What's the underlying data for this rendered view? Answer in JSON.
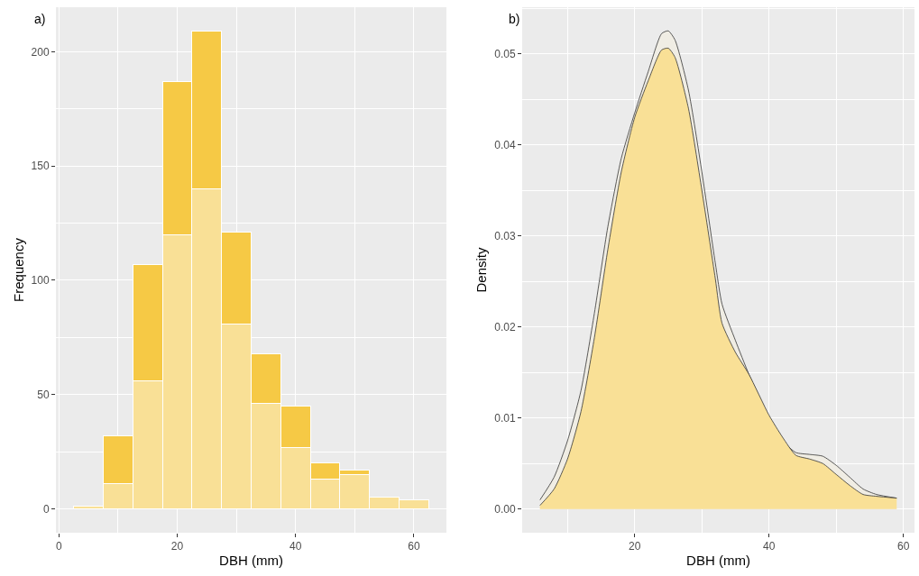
{
  "chart_data": [
    {
      "type": "bar",
      "xlabel": "DBH (mm)",
      "ylabel": "Frequency",
      "annotations": [
        "a)"
      ],
      "x": [
        5,
        10,
        15,
        20,
        25,
        30,
        35,
        40,
        45,
        50,
        55,
        60
      ],
      "series": [
        {
          "color": "#f9e096",
          "values": [
            1,
            11,
            56,
            120,
            140,
            81,
            46,
            27,
            13,
            15,
            5,
            4
          ]
        },
        {
          "color": "#f6c945",
          "values": [
            null,
            21,
            51,
            67,
            69,
            40,
            22,
            18,
            7,
            2,
            null,
            null
          ]
        }
      ],
      "stacked": true,
      "xlim": [
        -0.5,
        65.5
      ],
      "ylim": [
        -10.45,
        219.45
      ],
      "xticks": [
        0,
        20,
        40,
        60
      ],
      "yticks": [
        0,
        50,
        100,
        150,
        200
      ],
      "grid": true
    },
    {
      "type": "area",
      "xlabel": "DBH (mm)",
      "ylabel": "Density",
      "annotations": [
        "b)"
      ],
      "x": [
        5.9,
        8,
        10,
        12,
        14,
        16,
        18,
        20,
        22,
        24,
        25,
        26,
        28,
        30,
        32,
        33,
        35,
        37,
        40,
        42,
        44,
        46,
        48,
        50,
        52,
        54,
        56,
        59
      ],
      "series": [
        {
          "color": "#f0ede4",
          "values": [
            0.001,
            0.0035,
            0.0075,
            0.013,
            0.0215,
            0.031,
            0.0385,
            0.0435,
            0.048,
            0.0522,
            0.0525,
            0.0515,
            0.046,
            0.037,
            0.027,
            0.0225,
            0.0185,
            0.0148,
            0.01,
            0.0075,
            0.0062,
            0.006,
            0.0058,
            0.0048,
            0.0035,
            0.0022,
            0.0016,
            0.0012
          ]
        },
        {
          "color": "#f9e096",
          "values": [
            0.0004,
            0.0022,
            0.0055,
            0.0107,
            0.0188,
            0.0285,
            0.037,
            0.043,
            0.047,
            0.0504,
            0.0506,
            0.0496,
            0.044,
            0.035,
            0.0253,
            0.0204,
            0.0172,
            0.0148,
            0.0103,
            0.0079,
            0.0059,
            0.0055,
            0.005,
            0.0038,
            0.0026,
            0.0016,
            0.0014,
            0.0012
          ]
        }
      ],
      "xlim": [
        3.25,
        61.65
      ],
      "ylim": [
        -0.0026,
        0.0551
      ],
      "xticks": [
        20,
        40,
        60
      ],
      "yticks": [
        {
          "value": 0,
          "label": "0.00"
        },
        {
          "value": 0.01,
          "label": "0.01"
        },
        {
          "value": 0.02,
          "label": "0.02"
        },
        {
          "value": 0.03,
          "label": "0.03"
        },
        {
          "value": 0.04,
          "label": "0.04"
        },
        {
          "value": 0.05,
          "label": "0.05"
        }
      ],
      "grid": true
    }
  ]
}
